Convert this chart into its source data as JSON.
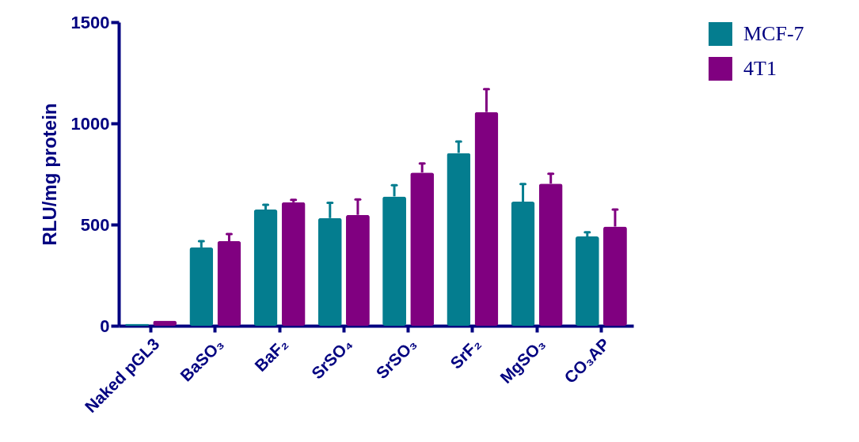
{
  "chart_data": {
    "type": "bar",
    "ylabel": "RLU/mg protein",
    "categories": [
      "Naked pGL3",
      "BaSO₃",
      "BaF₂",
      "SrSO₄",
      "SrSO₃",
      "SrF₂",
      "MgSO₃",
      "CO₃AP"
    ],
    "series": [
      {
        "name": "MCF-7",
        "color": "#047d8f",
        "values": [
          10,
          387,
          574,
          532,
          639,
          854,
          613,
          441
        ],
        "errors": [
          null,
          31,
          24,
          75,
          55,
          56,
          87,
          21
        ]
      },
      {
        "name": "4T1",
        "color": "#800080",
        "values": [
          25,
          418,
          610,
          548,
          757,
          1056,
          702,
          490
        ],
        "errors": [
          null,
          35,
          12,
          76,
          45,
          113,
          49,
          84
        ]
      }
    ],
    "ylim": [
      0,
      1500
    ],
    "yticks": [
      0,
      500,
      1000,
      1500
    ],
    "grid": false,
    "legend": "top right"
  }
}
